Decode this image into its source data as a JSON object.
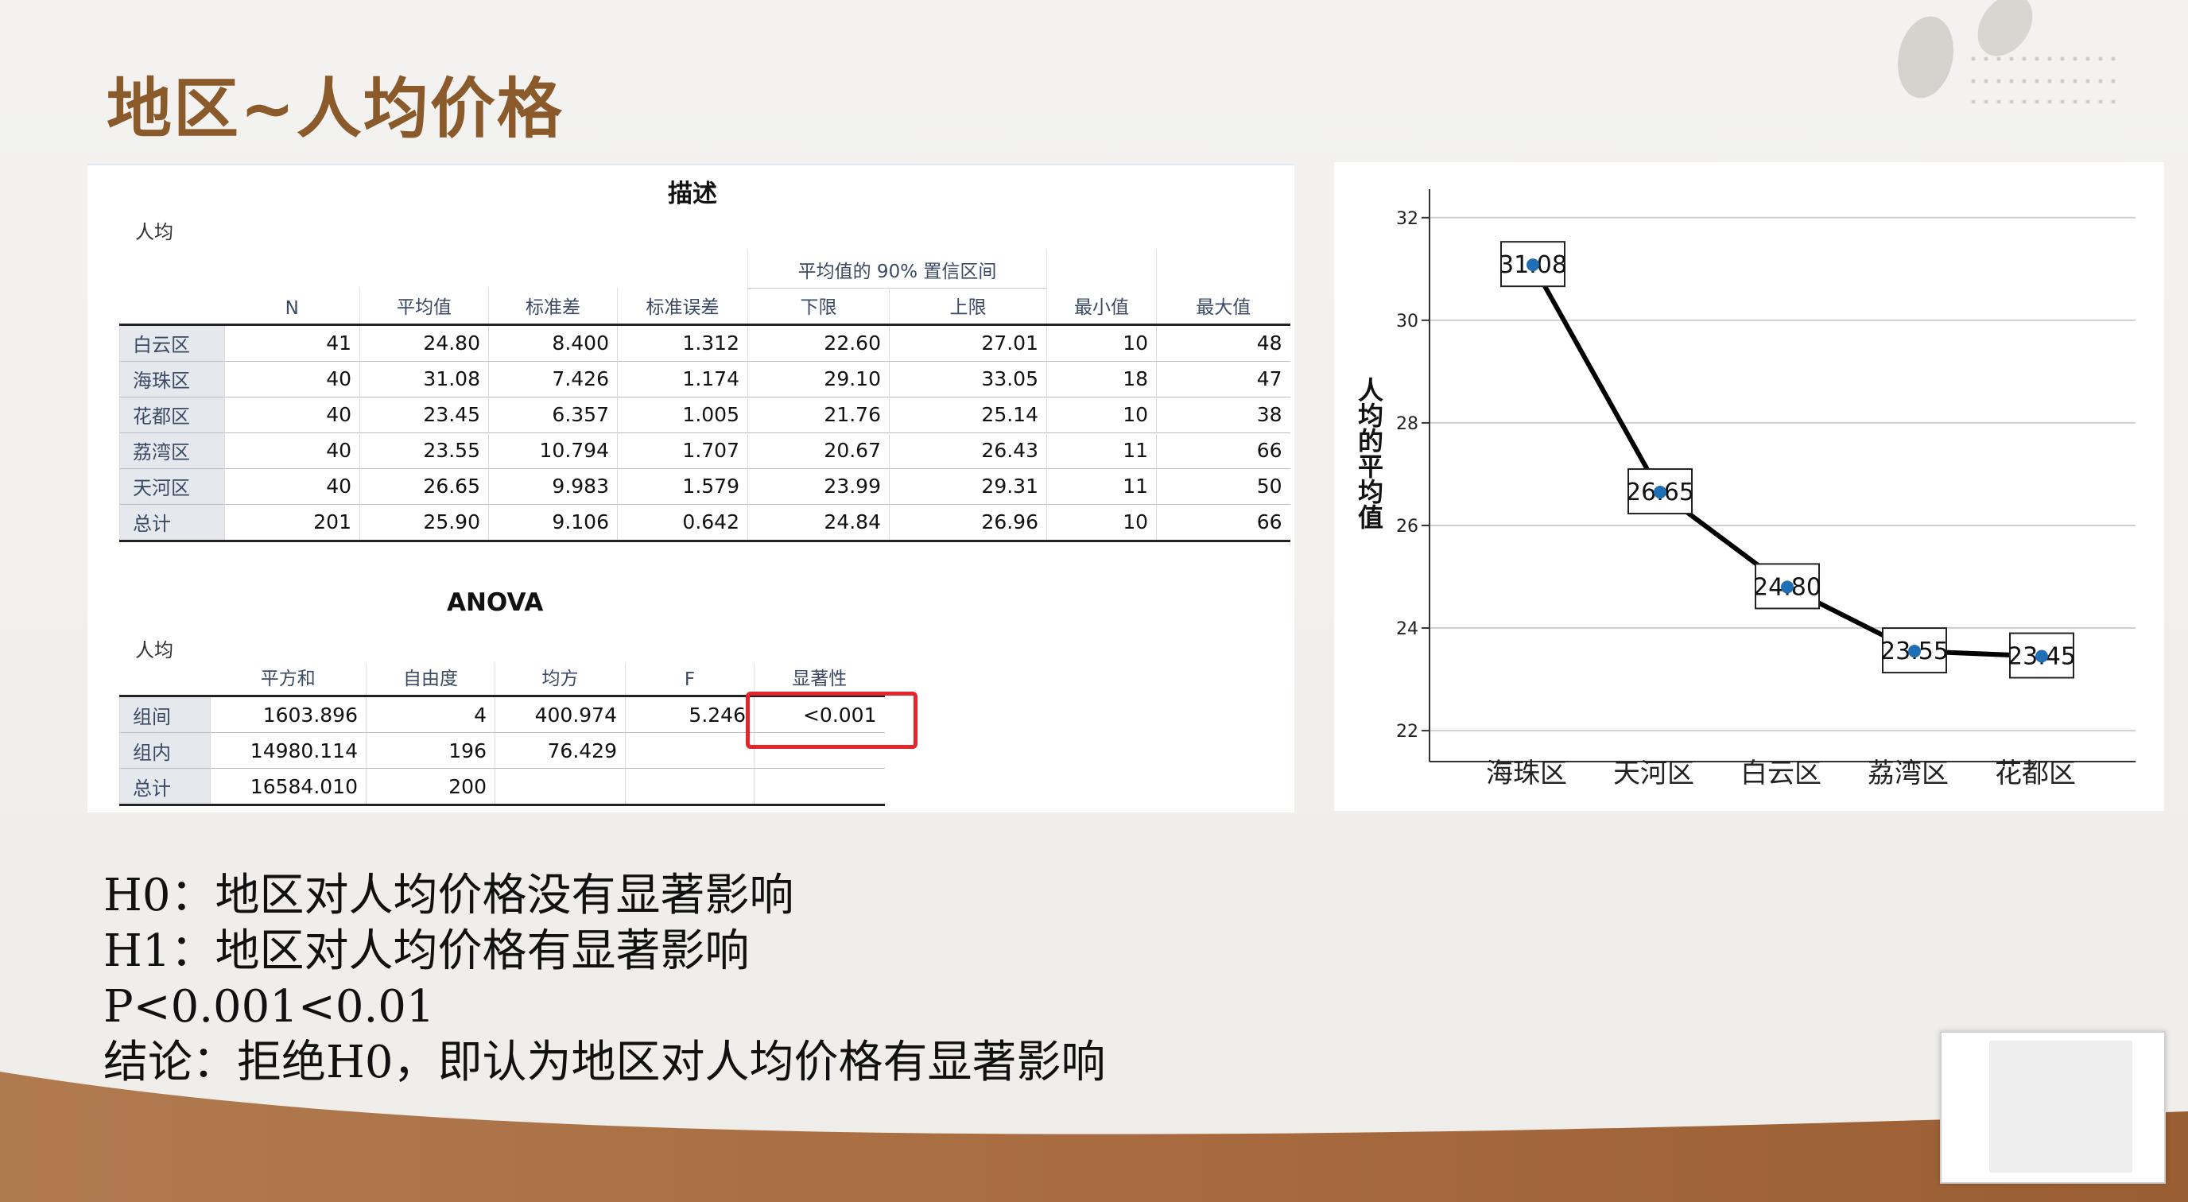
{
  "slide": {
    "title": "地区~人均价格",
    "accent_color": "#8a5a2b",
    "wave_color": "#a86c40"
  },
  "descriptives": {
    "title": "描述",
    "subtitle": "人均",
    "ci_header": "平均值的 90% 置信区间",
    "columns": [
      "N",
      "平均值",
      "标准差",
      "标准误差",
      "下限",
      "上限",
      "最小值",
      "最大值"
    ],
    "rows": [
      {
        "label": "白云区",
        "cells": [
          "41",
          "24.80",
          "8.400",
          "1.312",
          "22.60",
          "27.01",
          "10",
          "48"
        ]
      },
      {
        "label": "海珠区",
        "cells": [
          "40",
          "31.08",
          "7.426",
          "1.174",
          "29.10",
          "33.05",
          "18",
          "47"
        ]
      },
      {
        "label": "花都区",
        "cells": [
          "40",
          "23.45",
          "6.357",
          "1.005",
          "21.76",
          "25.14",
          "10",
          "38"
        ]
      },
      {
        "label": "荔湾区",
        "cells": [
          "40",
          "23.55",
          "10.794",
          "1.707",
          "20.67",
          "26.43",
          "11",
          "66"
        ]
      },
      {
        "label": "天河区",
        "cells": [
          "40",
          "26.65",
          "9.983",
          "1.579",
          "23.99",
          "29.31",
          "11",
          "50"
        ]
      },
      {
        "label": "总计",
        "cells": [
          "201",
          "25.90",
          "9.106",
          "0.642",
          "24.84",
          "26.96",
          "10",
          "66"
        ]
      }
    ]
  },
  "anova": {
    "title": "ANOVA",
    "subtitle": "人均",
    "columns": [
      "平方和",
      "自由度",
      "均方",
      "F",
      "显著性"
    ],
    "rows": [
      {
        "label": "组间",
        "cells": [
          "1603.896",
          "4",
          "400.974",
          "5.246",
          "<0.001"
        ]
      },
      {
        "label": "组内",
        "cells": [
          "14980.114",
          "196",
          "76.429",
          "",
          ""
        ]
      },
      {
        "label": "总计",
        "cells": [
          "16584.010",
          "200",
          "",
          "",
          ""
        ]
      }
    ],
    "highlight_color": "#e4262b"
  },
  "chart_data": {
    "type": "line",
    "title": "",
    "xlabel": "",
    "ylabel": "人均的平均值",
    "categories": [
      "海珠区",
      "天河区",
      "白云区",
      "荔湾区",
      "花都区"
    ],
    "values": [
      31.08,
      26.65,
      24.8,
      23.55,
      23.45
    ],
    "data_labels": [
      "31.08",
      "26.65",
      "24.80",
      "23.55",
      "23.45"
    ],
    "ylim": [
      21.8,
      32.4
    ],
    "yticks": [
      22,
      24,
      26,
      28,
      30,
      32
    ],
    "grid": true,
    "line_color": "#000000",
    "marker_color": "#1f6fb5"
  },
  "conclusion": {
    "lines": [
      "H0：地区对人均价格没有显著影响",
      "H1：地区对人均价格有显著影响",
      "P<0.001<0.01",
      "结论：拒绝H0，即认为地区对人均价格有显著影响"
    ]
  }
}
